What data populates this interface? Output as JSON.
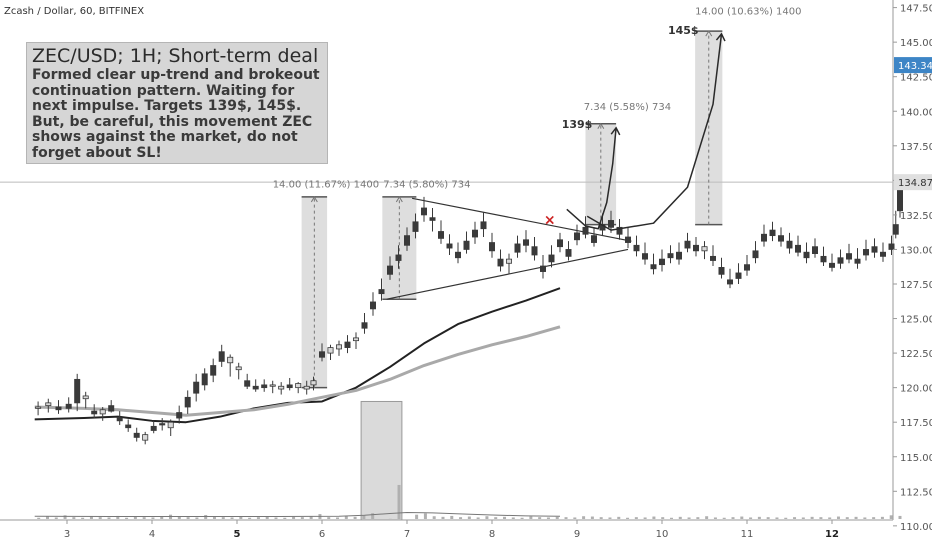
{
  "source_title": "Zcash / Dollar, 60, BITFINEX",
  "idea": {
    "title": "ZEC/USD; 1H; Short-term deal",
    "body": "Formed clear up-trend and brokeout\ncontinuation pattern. Waiting for\nnext impulse. Targets 139$, 145$.\nBut, be careful, this movement ZEC\nshows against the market, do not\nforget about SL!"
  },
  "chart_data": {
    "type": "candlestick",
    "title": "Zcash / Dollar, 60, BITFINEX",
    "x_ticks": [
      "3",
      "4",
      "5",
      "6",
      "7",
      "8",
      "9",
      "10",
      "11",
      "12"
    ],
    "x_ticks_bold": [
      "5",
      "12"
    ],
    "y_ticks": [
      "147.50",
      "145.00",
      "142.50",
      "140.00",
      "137.50",
      "135.00",
      "132.50",
      "130.00",
      "127.50",
      "125.00",
      "122.50",
      "120.00",
      "117.50",
      "115.00",
      "112.50",
      "110.00"
    ],
    "ylim": [
      109.3,
      148.2
    ],
    "xlim": [
      2.62,
      12.82
    ],
    "price_labels": [
      {
        "text": "143.34",
        "value": 143.34,
        "color": "#3d85c6"
      },
      {
        "text": "134.87",
        "value": 134.87,
        "color": "#e0e0e0"
      }
    ],
    "current_price_line": 134.87,
    "moving_averages": [
      {
        "color": "#222222",
        "points": [
          [
            2.62,
            117.7
          ],
          [
            3.2,
            117.8
          ],
          [
            3.6,
            117.9
          ],
          [
            4.0,
            117.6
          ],
          [
            4.4,
            117.5
          ],
          [
            4.8,
            117.9
          ],
          [
            5.2,
            118.5
          ],
          [
            5.6,
            118.9
          ],
          [
            6.0,
            119.0
          ],
          [
            6.4,
            120.0
          ],
          [
            6.8,
            121.5
          ],
          [
            7.2,
            123.2
          ],
          [
            7.6,
            124.6
          ],
          [
            8.0,
            125.5
          ],
          [
            8.4,
            126.3
          ],
          [
            8.8,
            127.2
          ]
        ]
      },
      {
        "color": "#a9a9a9",
        "points": [
          [
            2.62,
            118.6
          ],
          [
            3.2,
            118.5
          ],
          [
            3.6,
            118.4
          ],
          [
            4.0,
            118.2
          ],
          [
            4.4,
            118.0
          ],
          [
            4.8,
            118.2
          ],
          [
            5.2,
            118.4
          ],
          [
            5.6,
            118.8
          ],
          [
            6.0,
            119.3
          ],
          [
            6.4,
            119.8
          ],
          [
            6.8,
            120.6
          ],
          [
            7.2,
            121.6
          ],
          [
            7.6,
            122.4
          ],
          [
            8.0,
            123.1
          ],
          [
            8.4,
            123.7
          ],
          [
            8.8,
            124.4
          ]
        ]
      }
    ],
    "candles": [
      [
        2.66,
        118.5,
        119.0,
        118.0,
        118.6
      ],
      [
        2.78,
        118.7,
        119.2,
        118.2,
        118.9
      ],
      [
        2.9,
        118.6,
        119.1,
        118.1,
        118.4
      ],
      [
        3.02,
        118.8,
        119.3,
        118.2,
        118.5
      ],
      [
        3.12,
        120.6,
        121.0,
        118.3,
        118.9
      ],
      [
        3.22,
        119.2,
        119.7,
        118.5,
        119.4
      ],
      [
        3.32,
        118.3,
        118.8,
        117.8,
        118.1
      ],
      [
        3.42,
        118.1,
        118.6,
        117.6,
        118.4
      ],
      [
        3.52,
        118.7,
        119.1,
        118.2,
        118.3
      ],
      [
        3.62,
        117.8,
        118.3,
        117.3,
        117.6
      ],
      [
        3.72,
        117.3,
        117.7,
        116.8,
        117.1
      ],
      [
        3.82,
        116.7,
        117.1,
        116.1,
        116.4
      ],
      [
        3.92,
        116.2,
        116.8,
        115.9,
        116.6
      ],
      [
        4.02,
        117.2,
        117.6,
        116.7,
        116.9
      ],
      [
        4.12,
        117.4,
        117.8,
        116.9,
        117.3
      ],
      [
        4.22,
        117.1,
        117.7,
        116.5,
        117.5
      ],
      [
        4.32,
        118.2,
        118.7,
        117.4,
        117.8
      ],
      [
        4.42,
        119.3,
        119.8,
        118.1,
        118.6
      ],
      [
        4.52,
        120.4,
        121.0,
        119.0,
        119.6
      ],
      [
        4.62,
        121.0,
        121.4,
        119.8,
        120.2
      ],
      [
        4.72,
        121.6,
        122.1,
        120.4,
        120.9
      ],
      [
        4.82,
        122.6,
        123.1,
        121.5,
        121.9
      ],
      [
        4.92,
        121.8,
        122.4,
        120.8,
        122.2
      ],
      [
        5.02,
        121.3,
        121.8,
        120.6,
        121.5
      ],
      [
        5.12,
        120.5,
        121.0,
        119.9,
        120.1
      ],
      [
        5.22,
        120.1,
        120.6,
        119.7,
        119.9
      ],
      [
        5.32,
        120.2,
        120.6,
        119.7,
        120.0
      ],
      [
        5.42,
        120.1,
        120.5,
        119.6,
        120.2
      ],
      [
        5.52,
        119.9,
        120.4,
        119.5,
        120.1
      ],
      [
        5.62,
        120.2,
        120.7,
        119.8,
        120.0
      ],
      [
        5.72,
        120.0,
        120.4,
        119.6,
        120.3
      ],
      [
        5.82,
        119.9,
        120.5,
        119.5,
        120.1
      ],
      [
        5.9,
        120.2,
        120.8,
        119.8,
        120.5
      ],
      [
        6.0,
        122.6,
        123.2,
        121.9,
        122.2
      ],
      [
        6.1,
        122.5,
        123.1,
        122.0,
        122.9
      ],
      [
        6.2,
        122.8,
        123.4,
        122.3,
        123.1
      ],
      [
        6.3,
        123.3,
        123.8,
        122.5,
        122.9
      ],
      [
        6.4,
        123.4,
        124.0,
        122.8,
        123.6
      ],
      [
        6.5,
        124.7,
        125.4,
        123.9,
        124.3
      ],
      [
        6.6,
        126.2,
        126.9,
        125.2,
        125.7
      ],
      [
        6.7,
        127.1,
        127.9,
        126.3,
        126.8
      ],
      [
        6.8,
        128.8,
        129.5,
        127.8,
        128.2
      ],
      [
        6.9,
        129.6,
        130.3,
        128.6,
        129.2
      ],
      [
        7.0,
        131.0,
        131.6,
        129.9,
        130.3
      ],
      [
        7.1,
        132.0,
        132.6,
        130.8,
        131.3
      ],
      [
        7.2,
        133.0,
        133.8,
        132.0,
        132.5
      ],
      [
        7.3,
        132.3,
        133.0,
        131.3,
        132.1
      ],
      [
        7.4,
        131.3,
        132.1,
        130.4,
        130.8
      ],
      [
        7.5,
        130.4,
        131.1,
        129.6,
        130.1
      ],
      [
        7.6,
        129.8,
        130.5,
        129.0,
        129.4
      ],
      [
        7.7,
        130.6,
        131.3,
        129.7,
        130.0
      ],
      [
        7.8,
        131.4,
        132.0,
        130.4,
        130.9
      ],
      [
        7.9,
        132.0,
        132.7,
        130.9,
        131.5
      ],
      [
        8.0,
        130.5,
        131.2,
        129.4,
        129.9
      ],
      [
        8.1,
        129.3,
        130.0,
        128.4,
        128.8
      ],
      [
        8.2,
        129.0,
        129.7,
        128.2,
        129.3
      ],
      [
        8.3,
        130.4,
        131.0,
        129.4,
        129.8
      ],
      [
        8.4,
        130.7,
        131.4,
        129.8,
        130.3
      ],
      [
        8.5,
        130.2,
        130.9,
        129.2,
        129.6
      ],
      [
        8.6,
        128.8,
        129.6,
        127.9,
        128.4
      ],
      [
        8.7,
        129.6,
        130.3,
        128.7,
        129.1
      ],
      [
        8.8,
        130.7,
        131.2,
        129.8,
        130.2
      ],
      [
        8.9,
        130.0,
        130.6,
        129.2,
        129.5
      ],
      [
        9.0,
        131.2,
        131.8,
        130.3,
        130.7
      ],
      [
        9.1,
        131.6,
        132.4,
        130.8,
        131.1
      ],
      [
        9.2,
        131.0,
        131.6,
        130.2,
        130.5
      ],
      [
        9.3,
        131.8,
        132.6,
        131.0,
        131.4
      ],
      [
        9.4,
        132.1,
        132.8,
        131.2,
        131.6
      ],
      [
        9.5,
        131.6,
        132.2,
        130.7,
        131.1
      ],
      [
        9.6,
        130.9,
        131.6,
        130.1,
        130.5
      ],
      [
        9.7,
        130.3,
        131.0,
        129.5,
        129.9
      ],
      [
        9.8,
        129.7,
        130.5,
        128.9,
        129.3
      ],
      [
        9.9,
        128.9,
        129.7,
        128.2,
        128.6
      ],
      [
        10.0,
        129.3,
        130.0,
        128.4,
        128.9
      ],
      [
        10.1,
        129.7,
        130.3,
        129.0,
        129.4
      ],
      [
        10.2,
        129.8,
        130.5,
        128.9,
        129.3
      ],
      [
        10.3,
        130.6,
        131.2,
        129.8,
        130.1
      ],
      [
        10.4,
        130.3,
        130.9,
        129.5,
        129.9
      ],
      [
        10.5,
        129.9,
        130.6,
        129.3,
        130.2
      ],
      [
        10.6,
        129.5,
        130.3,
        128.8,
        129.2
      ],
      [
        10.7,
        128.7,
        129.4,
        127.9,
        128.2
      ],
      [
        10.8,
        127.8,
        128.6,
        127.2,
        127.5
      ],
      [
        10.9,
        128.3,
        129.0,
        127.5,
        127.9
      ],
      [
        11.0,
        128.9,
        129.6,
        128.1,
        128.5
      ],
      [
        11.1,
        129.9,
        130.6,
        129.0,
        129.4
      ],
      [
        11.2,
        131.1,
        131.8,
        130.2,
        130.6
      ],
      [
        11.3,
        131.4,
        132.0,
        130.6,
        131.0
      ],
      [
        11.4,
        131.0,
        131.6,
        130.2,
        130.6
      ],
      [
        11.5,
        130.6,
        131.2,
        129.7,
        130.1
      ],
      [
        11.6,
        130.3,
        131.0,
        129.5,
        129.8
      ],
      [
        11.7,
        129.8,
        130.5,
        129.0,
        129.4
      ],
      [
        11.8,
        130.2,
        130.8,
        129.4,
        129.7
      ],
      [
        11.9,
        129.5,
        130.2,
        128.8,
        129.1
      ],
      [
        12.0,
        129.0,
        129.7,
        128.4,
        128.7
      ],
      [
        12.1,
        129.4,
        130.0,
        128.6,
        129.0
      ],
      [
        12.2,
        129.7,
        130.4,
        129.0,
        129.3
      ],
      [
        12.3,
        129.3,
        130.1,
        128.6,
        129.0
      ],
      [
        12.4,
        130.0,
        130.7,
        129.2,
        129.6
      ],
      [
        12.5,
        130.2,
        130.8,
        129.4,
        129.8
      ],
      [
        12.6,
        129.8,
        130.5,
        129.1,
        129.5
      ],
      [
        12.7,
        130.4,
        131.0,
        129.6,
        130.0
      ],
      [
        12.75,
        131.8,
        132.8,
        130.8,
        131.1
      ],
      [
        12.8,
        134.9,
        135.1,
        132.3,
        132.8
      ]
    ],
    "volume": [
      10.4,
      10.8,
      10.5,
      11.2,
      10.6,
      10.4,
      10.9,
      10.6,
      10.5,
      11.0,
      10.4,
      10.7,
      10.6,
      10.5,
      10.9,
      11.4,
      10.7,
      10.6,
      10.5,
      11.3,
      10.8,
      10.6,
      10.5,
      10.9,
      10.4,
      10.6,
      10.8,
      10.5,
      10.4,
      10.7,
      10.6,
      10.8,
      11.6,
      10.6,
      10.5,
      10.9,
      10.7,
      11.1,
      11.9,
      12.2,
      14.3,
      17.8,
      12.6,
      11.4,
      11.8,
      10.9,
      10.7,
      11.0,
      10.6,
      10.8,
      10.5,
      10.9,
      10.6,
      10.7,
      10.5,
      10.4,
      10.8,
      10.6,
      10.5,
      10.7,
      10.6,
      10.5,
      10.9,
      10.8,
      10.6,
      10.5,
      10.7,
      10.4,
      10.6,
      10.5,
      10.8,
      10.6,
      10.4,
      10.7,
      10.5,
      10.6,
      10.9,
      10.5,
      10.4,
      10.6,
      10.8,
      10.5,
      10.7,
      10.6,
      10.5,
      10.4,
      10.6,
      10.5,
      10.7,
      10.6,
      10.5,
      10.8,
      10.6,
      10.7,
      10.5,
      10.6,
      10.7,
      11.2,
      11.0
    ],
    "volume_ma": [
      [
        2.62,
        10.9
      ],
      [
        3.5,
        10.8
      ],
      [
        4.5,
        10.8
      ],
      [
        5.5,
        10.8
      ],
      [
        6.2,
        10.9
      ],
      [
        6.5,
        11.2
      ],
      [
        6.8,
        11.8
      ],
      [
        7.0,
        12.1
      ],
      [
        7.3,
        12.0
      ],
      [
        7.7,
        11.6
      ],
      [
        8.0,
        11.3
      ],
      [
        8.4,
        11.0
      ],
      [
        8.8,
        10.9
      ]
    ],
    "volume_box": {
      "x": [
        6.46,
        6.94
      ],
      "y": [
        109.3,
        119.0
      ]
    },
    "triangle": {
      "upper": [
        [
          7.06,
          133.7
        ],
        [
          9.64,
          130.6
        ]
      ],
      "lower": [
        [
          6.76,
          126.4
        ],
        [
          9.6,
          130.0
        ]
      ]
    },
    "breakout_marker": {
      "x": 8.68,
      "y": 132.1,
      "symbol": "×"
    },
    "measures": [
      {
        "x": [
          5.76,
          6.06
        ],
        "y": [
          120.0,
          133.8
        ],
        "label": "14.00 (11.67%) 1400",
        "label_pos": [
          5.42,
          134.5
        ]
      },
      {
        "x": [
          6.71,
          7.11
        ],
        "y": [
          126.4,
          133.8
        ],
        "label": "7.34 (5.80%) 734",
        "label_pos": [
          6.72,
          134.5
        ]
      },
      {
        "x": [
          9.1,
          9.46
        ],
        "y": [
          131.8,
          139.1
        ],
        "label": "7.34 (5.58%) 734",
        "label_pos": [
          9.08,
          140.1
        ],
        "target": "139$",
        "target_pos": [
          8.82,
          138.8
        ]
      },
      {
        "x": [
          10.39,
          10.71
        ],
        "y": [
          131.8,
          145.8
        ],
        "label": "14.00 (10.63%) 1400",
        "label_pos": [
          10.39,
          147.0
        ],
        "target": "145$",
        "target_pos": [
          10.07,
          145.6
        ]
      }
    ],
    "projection_arrows": [
      {
        "points": [
          [
            8.88,
            132.9
          ],
          [
            9.1,
            131.7
          ],
          [
            9.25,
            131.5
          ],
          [
            9.35,
            133.4
          ],
          [
            9.42,
            136.2
          ],
          [
            9.46,
            138.8
          ]
        ]
      },
      {
        "points": [
          [
            9.12,
            132.4
          ],
          [
            9.4,
            131.4
          ],
          [
            9.9,
            131.9
          ],
          [
            10.3,
            134.5
          ],
          [
            10.6,
            140.5
          ],
          [
            10.7,
            145.6
          ]
        ]
      }
    ]
  }
}
